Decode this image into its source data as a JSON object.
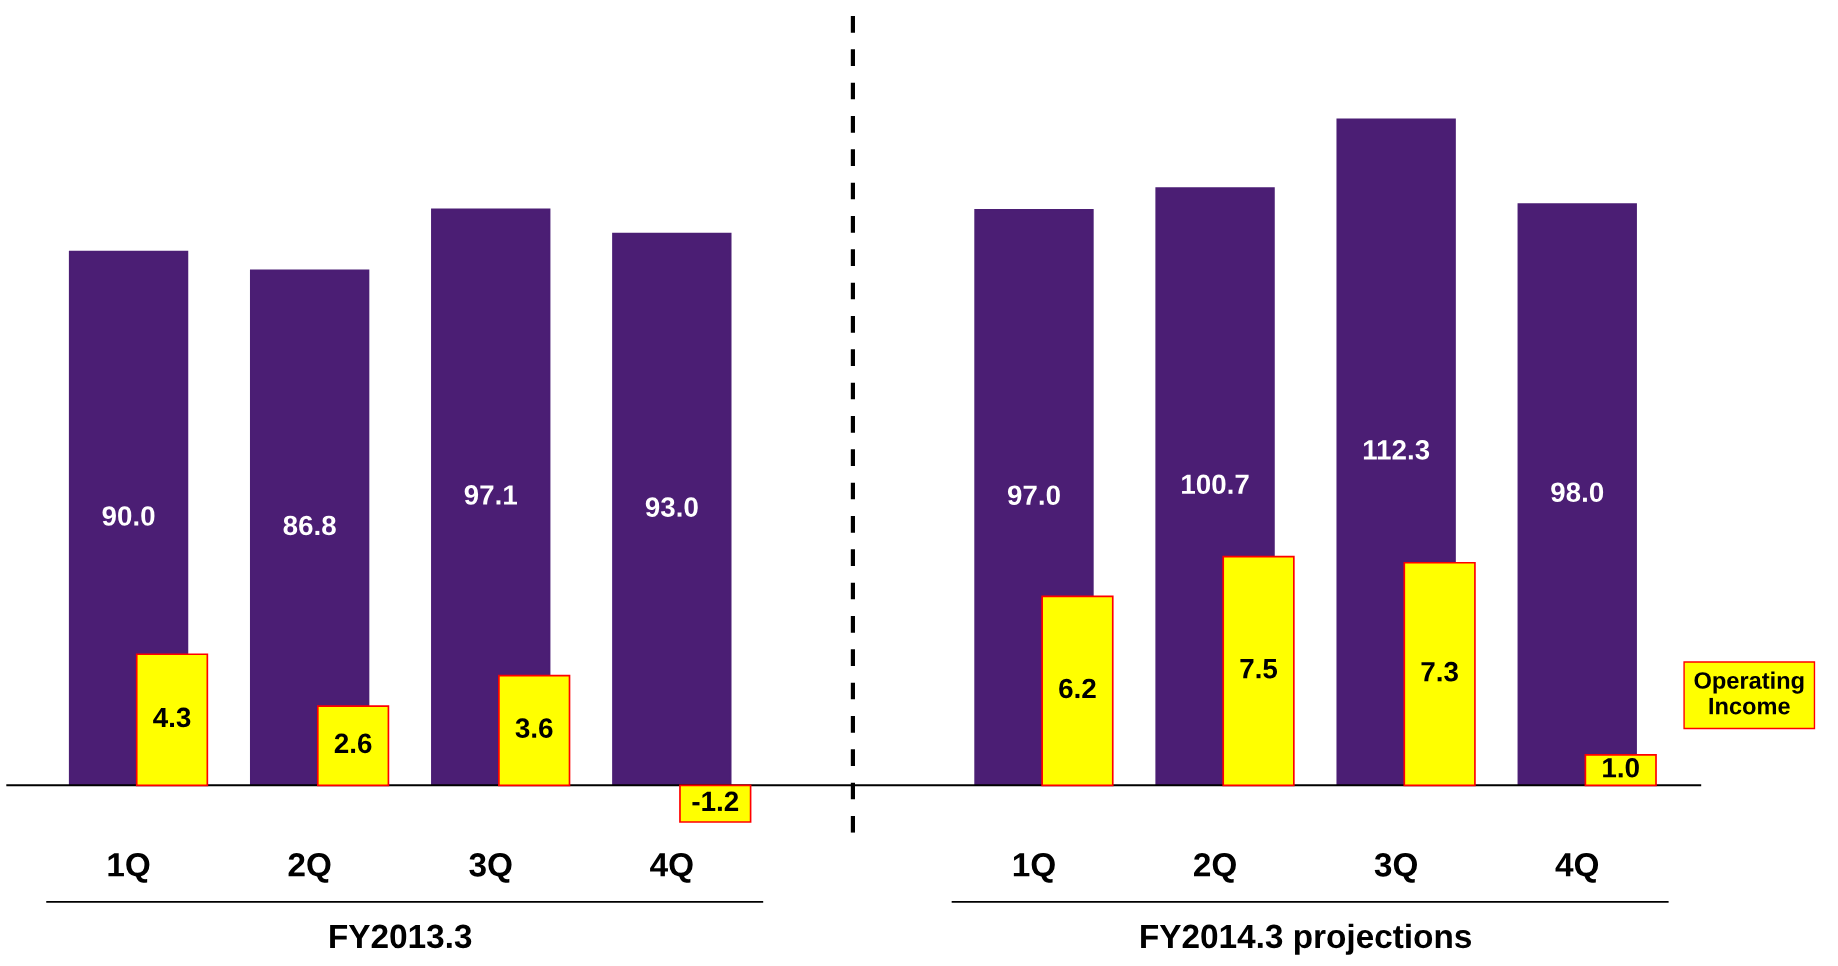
{
  "chart_data": {
    "type": "bar",
    "categories": [
      "1Q",
      "2Q",
      "3Q",
      "4Q",
      null,
      "1Q",
      "2Q",
      "3Q",
      "4Q"
    ],
    "series": [
      {
        "color": "#4b1e74",
        "values": [
          90.0,
          86.8,
          97.1,
          93.0,
          null,
          97.0,
          100.7,
          112.3,
          98.0
        ],
        "value_labels": [
          "90.0",
          "86.8",
          "97.1",
          "93.0",
          null,
          "97.0",
          "100.7",
          "112.3",
          "98.0"
        ]
      },
      {
        "name": "Operating Income",
        "color": "#ffff00",
        "axis": "y2",
        "values": [
          4.3,
          2.6,
          3.6,
          -1.2,
          null,
          6.2,
          7.5,
          7.3,
          1.0
        ],
        "value_labels": [
          "4.3",
          "2.6",
          "3.6",
          "-1.2",
          null,
          "6.2",
          "7.5",
          "7.3",
          "1.0"
        ]
      }
    ],
    "ylim": [
      -8,
      132.4
    ],
    "y2lim": [
      -1.55,
      25.75
    ],
    "tick_labels": "x",
    "annotations": [
      "FY2013.3",
      "FY2014.3 projections"
    ]
  }
}
